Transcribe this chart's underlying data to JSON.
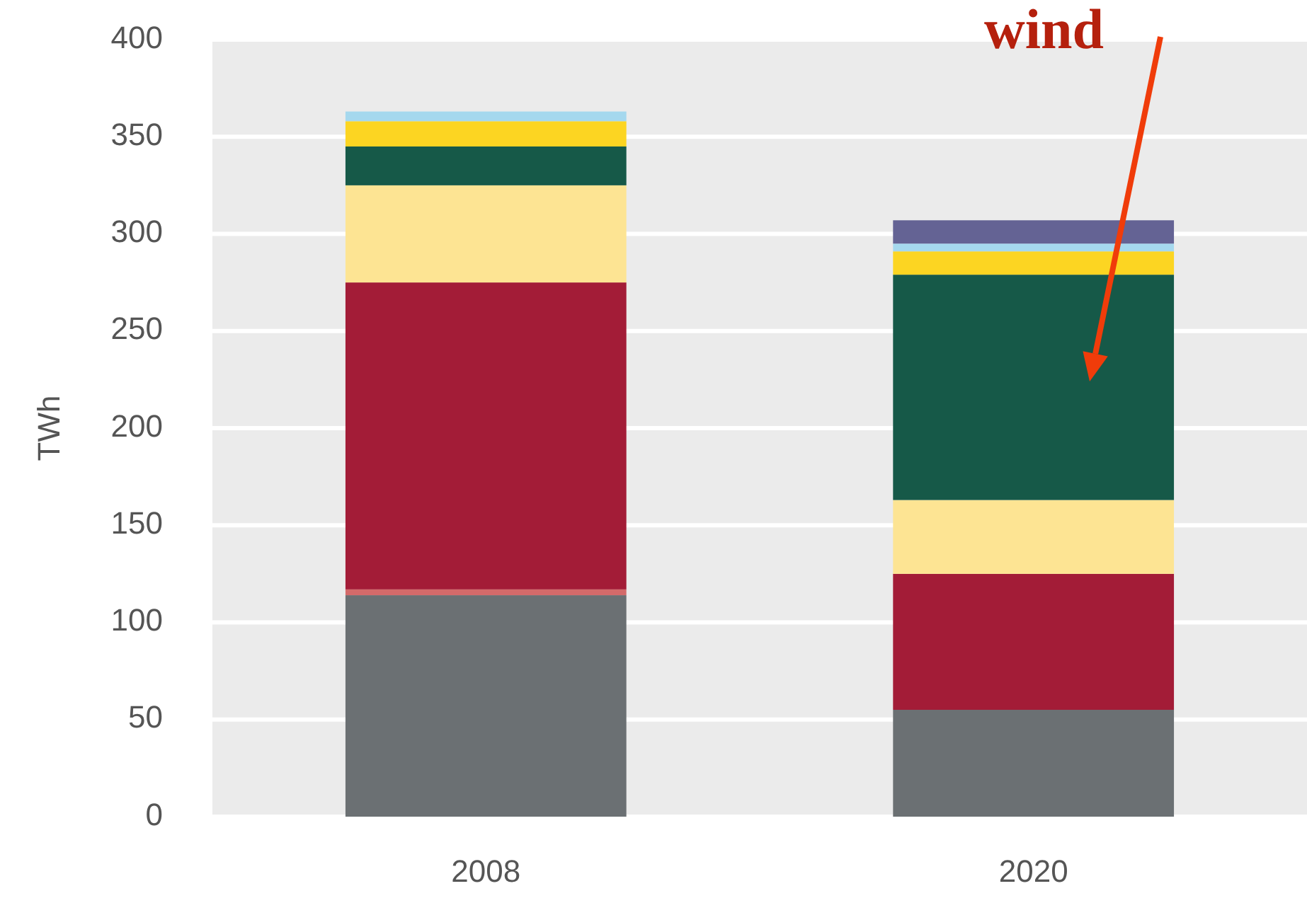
{
  "chart_data": {
    "type": "bar",
    "stacked": true,
    "ylabel": "TWh",
    "categories": [
      "2008",
      "2020"
    ],
    "series": [
      {
        "color": "#6b7073",
        "values": [
          114,
          55
        ]
      },
      {
        "color": "#d46a6a",
        "values": [
          3,
          0
        ]
      },
      {
        "color": "#a31c37",
        "values": [
          158,
          70
        ]
      },
      {
        "color": "#fde493",
        "values": [
          50,
          38
        ]
      },
      {
        "color": "#165948",
        "values": [
          20,
          116
        ]
      },
      {
        "color": "#fcd522",
        "values": [
          13,
          12
        ]
      },
      {
        "color": "#a5d8ee",
        "values": [
          5,
          4
        ]
      },
      {
        "color": "#646394",
        "values": [
          null,
          12
        ]
      }
    ],
    "ylim": [
      0,
      400
    ],
    "yticks": [
      0,
      50,
      100,
      150,
      200,
      250,
      300,
      350,
      400
    ],
    "grid": "y",
    "annotations": [
      "wind"
    ]
  }
}
